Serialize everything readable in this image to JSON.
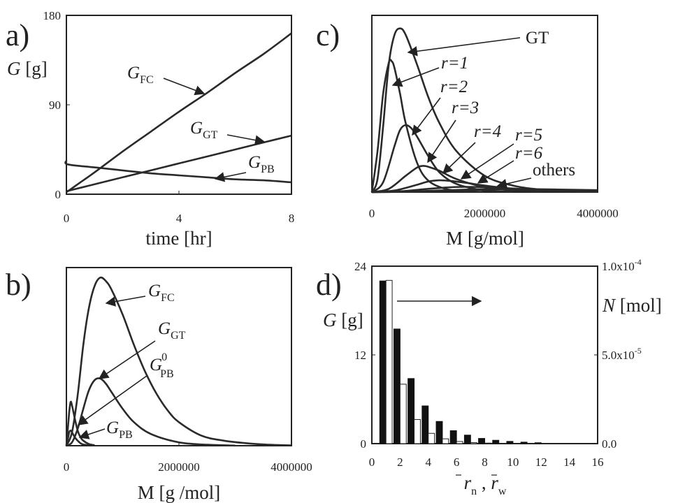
{
  "chart_data": [
    {
      "panel": "a)",
      "type": "line",
      "ylabel_var": "G",
      "ylabel_unit": "[g]",
      "xlabel": "time [hr]",
      "xlim": [
        0,
        8
      ],
      "ylim": [
        0,
        180
      ],
      "xticks": [
        "0",
        "4",
        "8"
      ],
      "yticks": [
        "0",
        "90",
        "180"
      ],
      "series": [
        {
          "name": "G",
          "sub": "FC",
          "x": [
            0,
            0.5,
            1,
            2,
            3,
            4,
            5,
            6,
            7,
            8
          ],
          "y": [
            2,
            12,
            22,
            43,
            63,
            83,
            102,
            122,
            141,
            162
          ]
        },
        {
          "name": "G",
          "sub": "GT",
          "x": [
            0,
            1,
            2,
            3,
            4,
            5,
            6,
            7,
            8
          ],
          "y": [
            3,
            10,
            17,
            24,
            31,
            38,
            45,
            52,
            59
          ]
        },
        {
          "name": "G",
          "sub": "PB",
          "x": [
            0,
            0.05,
            1,
            2,
            3,
            4,
            5,
            6,
            7,
            8
          ],
          "y": [
            34,
            30,
            27,
            24,
            21,
            19,
            17,
            15,
            14,
            12
          ]
        }
      ]
    },
    {
      "panel": "b)",
      "type": "line",
      "xlabel": "M [g /mol]",
      "xlim": [
        0,
        4000000
      ],
      "xticks": [
        "0",
        "2000000",
        "4000000"
      ],
      "series": [
        {
          "name": "G",
          "sub": "FC",
          "x": [
            0,
            100000,
            200000,
            300000,
            400000,
            500000,
            600000,
            700000,
            800000,
            1000000,
            1200000,
            1400000,
            1600000,
            1800000,
            2000000,
            2400000,
            2800000,
            3200000,
            3600000,
            4000000
          ],
          "y": [
            0,
            8,
            30,
            60,
            82,
            95,
            100,
            98,
            93,
            78,
            60,
            44,
            31,
            21,
            14,
            6,
            3,
            1.5,
            0.6,
            0.2
          ]
        },
        {
          "name": "G",
          "sub": "GT",
          "x": [
            0,
            100000,
            200000,
            300000,
            400000,
            500000,
            600000,
            700000,
            800000,
            1000000,
            1200000,
            1500000,
            2000000,
            2500000,
            3000000
          ],
          "y": [
            0,
            2,
            10,
            22,
            33,
            39,
            40,
            37,
            32,
            22,
            14,
            7,
            2,
            0.6,
            0.1
          ]
        },
        {
          "name": "G",
          "sub": "PB",
          "sup": "0",
          "x": [
            0,
            25000,
            50000,
            75000,
            100000,
            150000,
            200000,
            250000,
            300000,
            400000,
            500000
          ],
          "y": [
            0,
            10,
            20,
            26,
            24,
            16,
            9,
            5,
            3,
            1,
            0.3
          ]
        },
        {
          "name": "G",
          "sub": "PB",
          "x": [
            0,
            25000,
            50000,
            75000,
            100000,
            150000,
            200000,
            250000,
            300000,
            400000
          ],
          "y": [
            0,
            4,
            8,
            9,
            8,
            5,
            3,
            1.5,
            0.7,
            0.2
          ]
        }
      ]
    },
    {
      "panel": "c)",
      "type": "line",
      "xlabel": "M [g/mol]",
      "xlim": [
        0,
        4000000
      ],
      "xticks": [
        "0",
        "2000000",
        "4000000"
      ],
      "series": [
        {
          "name": "GT",
          "x": [
            0,
            100000,
            200000,
            300000,
            400000,
            500000,
            600000,
            800000,
            1000000,
            1200000,
            1500000,
            2000000,
            2500000,
            3000000,
            3500000,
            4000000
          ],
          "y": [
            0,
            8,
            40,
            78,
            96,
            100,
            96,
            78,
            58,
            42,
            25,
            10,
            4,
            1.5,
            0.6,
            0.2
          ]
        },
        {
          "name": "r=1",
          "x": [
            0,
            100000,
            200000,
            300000,
            350000,
            400000,
            500000,
            600000,
            800000,
            1000000,
            1300000,
            1600000,
            2000000
          ],
          "y": [
            0,
            25,
            60,
            79,
            80,
            76,
            60,
            42,
            18,
            7,
            2,
            0.6,
            0.1
          ]
        },
        {
          "name": "r=2",
          "x": [
            0,
            200000,
            400000,
            500000,
            600000,
            700000,
            800000,
            1000000,
            1200000,
            1500000,
            2000000,
            2500000
          ],
          "y": [
            0,
            6,
            28,
            38,
            41,
            39,
            34,
            22,
            12,
            5,
            1,
            0.2
          ]
        },
        {
          "name": "r=3",
          "x": [
            0,
            300000,
            600000,
            800000,
            900000,
            1000000,
            1200000,
            1500000,
            2000000,
            2500000,
            3000000
          ],
          "y": [
            0,
            2,
            10,
            15,
            16,
            15.5,
            13,
            8,
            3,
            1,
            0.3
          ]
        },
        {
          "name": "r=4",
          "x": [
            0,
            400000,
            800000,
            1000000,
            1200000,
            1400000,
            1700000,
            2000000,
            2500000,
            3000000,
            3500000
          ],
          "y": [
            0,
            1,
            4.5,
            6.5,
            7.2,
            6.8,
            5.5,
            4,
            2,
            0.8,
            0.3
          ]
        },
        {
          "name": "r=5",
          "x": [
            0,
            500000,
            1000000,
            1400000,
            1700000,
            2000000,
            2500000,
            3000000,
            3500000,
            4000000
          ],
          "y": [
            0,
            0.5,
            2,
            3,
            3.2,
            3,
            2.2,
            1.3,
            0.7,
            0.3
          ]
        },
        {
          "name": "r=6",
          "x": [
            0,
            600000,
            1200000,
            1700000,
            2000000,
            2500000,
            3000000,
            3500000,
            4000000
          ],
          "y": [
            0,
            0.3,
            1,
            1.6,
            1.8,
            1.6,
            1.2,
            0.8,
            0.4
          ]
        },
        {
          "name": "others",
          "x": [
            0,
            800000,
            1500000,
            2200000,
            2800000,
            3300000,
            4000000
          ],
          "y": [
            0,
            0.3,
            1,
            1.6,
            1.8,
            1.6,
            1.2
          ]
        }
      ]
    },
    {
      "panel": "d)",
      "type": "bar",
      "ylabel_var": "G",
      "ylabel_unit": "[g]",
      "y2label_var": "N",
      "y2label_unit": "[mol]",
      "xlabel_terms": [
        "r",
        "n",
        "r",
        "w"
      ],
      "xlim": [
        0,
        16
      ],
      "ylim": [
        0,
        24
      ],
      "y2lim": [
        0,
        0.0001
      ],
      "xticks": [
        "0",
        "2",
        "4",
        "6",
        "8",
        "10",
        "12",
        "14",
        "16"
      ],
      "yticks": [
        "0",
        "12",
        "24"
      ],
      "y2ticks_base": [
        "0.0",
        "5.0x10",
        "1.0x10"
      ],
      "y2ticks_exp": [
        "",
        "-5",
        "-4"
      ],
      "categories": [
        1,
        2,
        3,
        4,
        5,
        6,
        7,
        8,
        9,
        10,
        11,
        12
      ],
      "series": [
        {
          "name": "G",
          "fill": "filled",
          "values": [
            22,
            15.5,
            8.8,
            5.1,
            3.0,
            1.75,
            1.15,
            0.7,
            0.45,
            0.3,
            0.2,
            0.12
          ]
        },
        {
          "name": "N",
          "fill": "open",
          "values": [
            9.2e-05,
            3.35e-05,
            1.36e-05,
            5.8e-06,
            2.7e-06,
            1.2e-06,
            6e-07,
            3e-07,
            1.5e-07,
            1e-07,
            5e-08,
            3e-08
          ]
        }
      ]
    }
  ]
}
